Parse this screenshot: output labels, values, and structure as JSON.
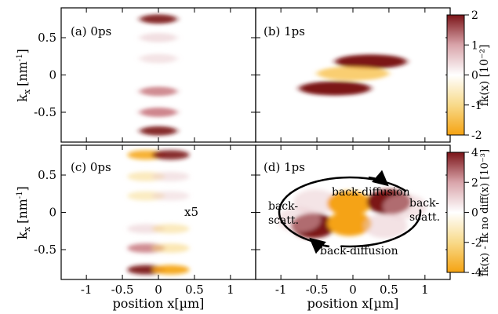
{
  "chart_data": {
    "type": "heatmap",
    "xlabel": "position x[µm]",
    "ylabel": "k",
    "ylabel_sub": "x",
    "ylabel_unit": "[nm",
    "ylabel_unit_sup": "-1",
    "ylabel_unit_close": "]",
    "xlim": [
      -1.35,
      1.35
    ],
    "ylim": [
      -0.9,
      0.9
    ],
    "xticks": [
      -1,
      -0.5,
      0,
      0.5,
      1
    ],
    "yticks": [
      0.5,
      0,
      -0.5
    ],
    "xtick_labels": [
      "-1",
      "-0.5",
      "0",
      "0.5",
      "1"
    ],
    "ytick_labels": [
      "0.5",
      "0",
      "-0.5"
    ],
    "colors": {
      "max": "#7b1418",
      "mid_high": "#e8c8cc",
      "zero": "#ffffff",
      "mid_low": "#f7d57a",
      "min": "#f5a312"
    },
    "panels": [
      {
        "label": "(a) 0ps",
        "blobs": [
          {
            "x": 0,
            "k": 0.75,
            "amp": 0.8
          },
          {
            "x": 0,
            "k": 0.5,
            "amp": 0.3
          },
          {
            "x": 0,
            "k": 0.22,
            "amp": 0.2
          },
          {
            "x": 0,
            "k": -0.22,
            "amp": 0.4
          },
          {
            "x": 0,
            "k": -0.5,
            "amp": 0.45
          },
          {
            "x": 0,
            "k": -0.75,
            "amp": 0.8
          }
        ]
      },
      {
        "label": "(b) 1ps",
        "blobs": [
          {
            "x": 0.25,
            "k": 0.18,
            "amp": 1.0
          },
          {
            "x": -0.25,
            "k": -0.18,
            "amp": 1.0
          },
          {
            "x": 0,
            "k": 0.02,
            "amp": -0.6
          }
        ]
      },
      {
        "label": "(c) 0ps",
        "annotation": "x5",
        "blobs": [
          {
            "x": -0.17,
            "k": 0.77,
            "amp": -0.7
          },
          {
            "x": 0.17,
            "k": 0.77,
            "amp": 0.8
          },
          {
            "x": -0.17,
            "k": 0.48,
            "amp": -0.2
          },
          {
            "x": 0.17,
            "k": 0.48,
            "amp": 0.2
          },
          {
            "x": -0.17,
            "k": 0.22,
            "amp": -0.15
          },
          {
            "x": 0.17,
            "k": 0.22,
            "amp": 0.12
          },
          {
            "x": -0.17,
            "k": -0.22,
            "amp": 0.25
          },
          {
            "x": 0.17,
            "k": -0.22,
            "amp": -0.2
          },
          {
            "x": -0.17,
            "k": -0.48,
            "amp": 0.4
          },
          {
            "x": 0.17,
            "k": -0.48,
            "amp": -0.3
          },
          {
            "x": -0.17,
            "k": -0.77,
            "amp": 0.85
          },
          {
            "x": 0.17,
            "k": -0.77,
            "amp": -0.8
          }
        ]
      },
      {
        "label": "(d) 1ps",
        "annotations": [
          "back-diffusion",
          "back-diffusion",
          "back-",
          "scatt.",
          "back-",
          "scatt."
        ],
        "blobs": [
          {
            "x": -0.52,
            "k": 0.14,
            "amp": 0.2
          },
          {
            "x": -0.05,
            "k": 0.12,
            "amp": -1.0
          },
          {
            "x": 0.5,
            "k": 0.14,
            "amp": 0.95
          },
          {
            "x": 0.72,
            "k": 0.08,
            "amp": 0.2
          },
          {
            "x": -0.55,
            "k": -0.18,
            "amp": 0.95
          },
          {
            "x": -0.05,
            "k": -0.15,
            "amp": -1.0
          },
          {
            "x": 0.45,
            "k": -0.18,
            "amp": 0.25
          },
          {
            "x": -0.75,
            "k": -0.1,
            "amp": 0.2
          }
        ]
      }
    ],
    "colorbars": [
      {
        "ticks": [
          "2",
          "1",
          "0",
          "-1",
          "-2"
        ],
        "label": "f̃k(x) [10⁻²]"
      },
      {
        "ticks": [
          "4",
          "2",
          "0",
          "-2",
          "-4"
        ],
        "label": "fk(x) - fk no diff(x) [10⁻³]"
      }
    ]
  }
}
